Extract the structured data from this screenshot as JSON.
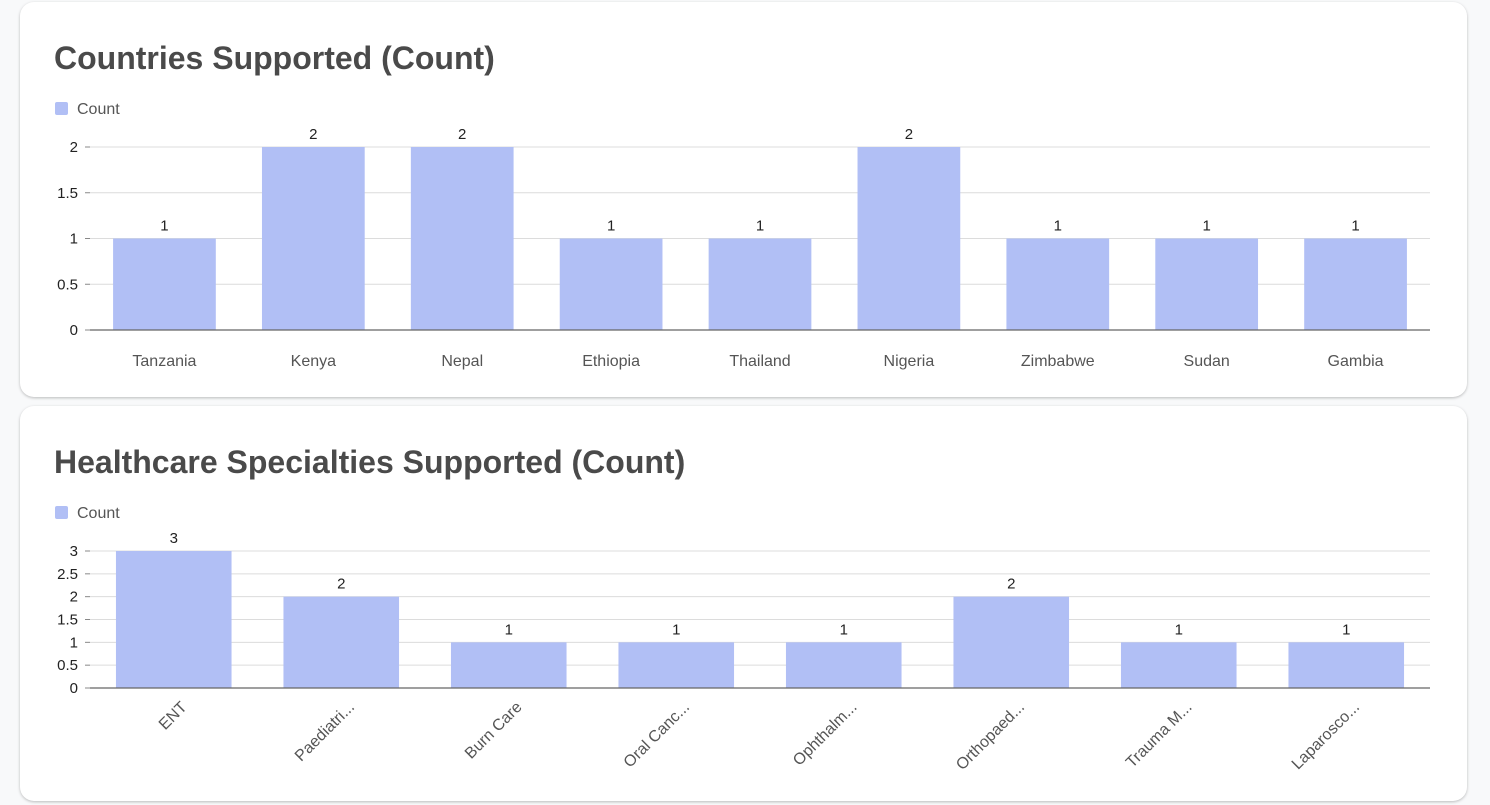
{
  "chart_data": [
    {
      "type": "bar",
      "title": "Countries Supported (Count)",
      "xlabel": "",
      "ylabel": "",
      "legend": {
        "position": "top-left",
        "entries": [
          "Count"
        ]
      },
      "grid": true,
      "ylim": [
        0,
        2
      ],
      "yticks": [
        0,
        0.5,
        1,
        1.5,
        2
      ],
      "ytick_labels": [
        "0",
        "0.5",
        "1",
        "1.5",
        "2"
      ],
      "categories": [
        "Tanzania",
        "Kenya",
        "Nepal",
        "Ethiopia",
        "Thailand",
        "Nigeria",
        "Zimbabwe",
        "Sudan",
        "Gambia"
      ],
      "series": [
        {
          "name": "Count",
          "values": [
            1,
            2,
            2,
            1,
            1,
            2,
            1,
            1,
            1
          ],
          "color": "#b1bff5"
        }
      ]
    },
    {
      "type": "bar",
      "title": "Healthcare Specialties Supported (Count)",
      "xlabel": "",
      "ylabel": "",
      "legend": {
        "position": "top-left",
        "entries": [
          "Count"
        ]
      },
      "grid": true,
      "ylim": [
        0,
        3
      ],
      "yticks": [
        0,
        0.5,
        1,
        1.5,
        2,
        2.5,
        3
      ],
      "ytick_labels": [
        "0",
        "0.5",
        "1",
        "1.5",
        "2",
        "2.5",
        "3"
      ],
      "categories": [
        "ENT",
        "Paediatri...",
        "Burn Care",
        "Oral Canc...",
        "Ophthalm...",
        "Orthopaed...",
        "Trauma M...",
        "Laparosco..."
      ],
      "series": [
        {
          "name": "Count",
          "values": [
            3,
            2,
            1,
            1,
            1,
            2,
            1,
            1
          ],
          "color": "#b1bff5"
        }
      ]
    }
  ]
}
